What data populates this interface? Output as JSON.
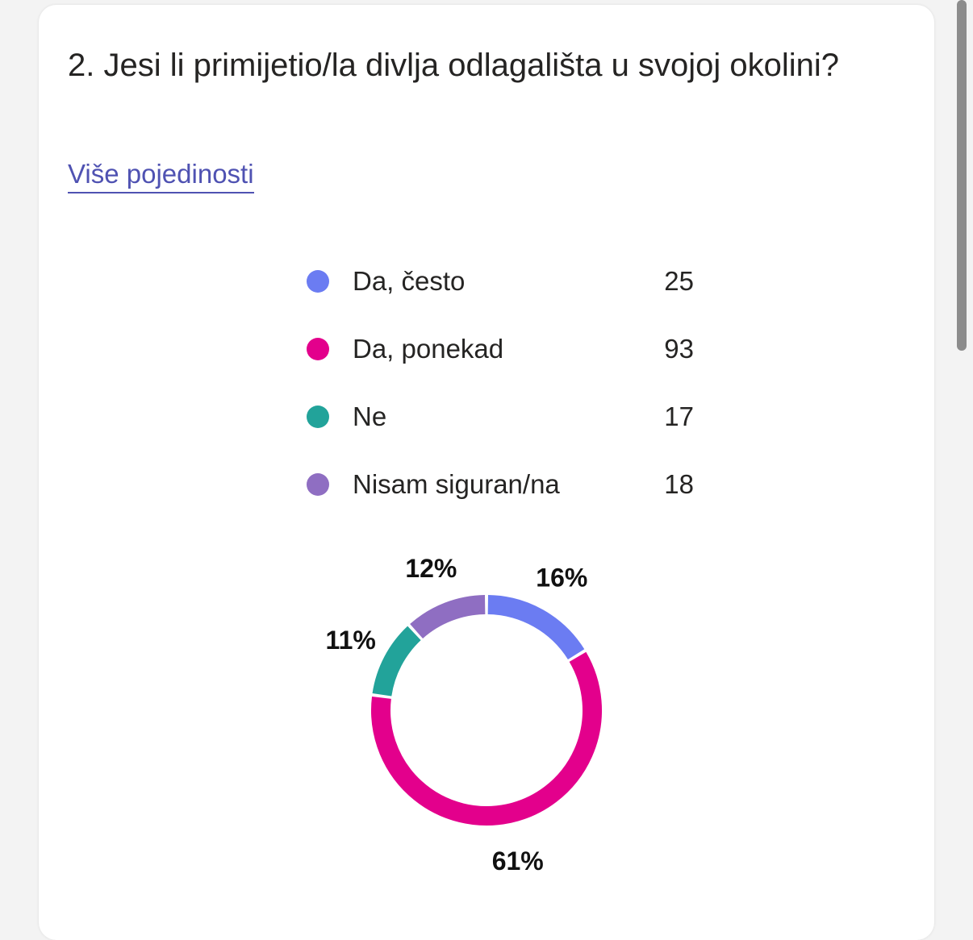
{
  "question": {
    "title": "2. Jesi li primijetio/la divlja odlagališta u svojoj okolini?",
    "more_details_label": "Više pojedinosti"
  },
  "chart_data": {
    "type": "pie",
    "style": "donut",
    "series": [
      {
        "label": "Da, često",
        "value": 25,
        "percent": "16%",
        "color": "#6b7cf2"
      },
      {
        "label": "Da, ponekad",
        "value": 93,
        "percent": "61%",
        "color": "#e3008c"
      },
      {
        "label": "Ne",
        "value": 17,
        "percent": "11%",
        "color": "#22a39a"
      },
      {
        "label": "Nisam siguran/na",
        "value": 18,
        "percent": "12%",
        "color": "#8f6ec2"
      }
    ],
    "legend_position": "top"
  }
}
